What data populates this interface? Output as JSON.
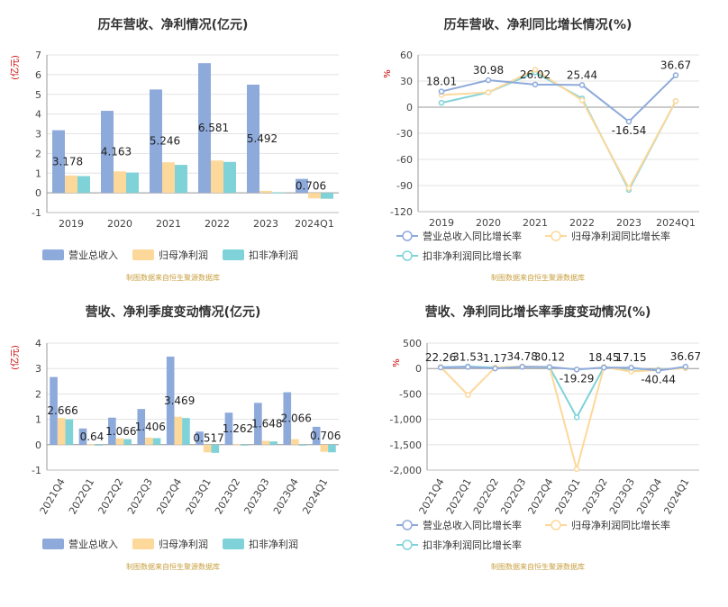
{
  "colors": {
    "revenue": "#8eaadb",
    "net_profit": "#fdd89b",
    "deducted_profit": "#7fd3d8",
    "revenue_line": "#8eaadb",
    "net_line": "#fdd89b",
    "deducted_line": "#7fd3d8",
    "axis_unit": "#cc0000",
    "source": "#c8a040"
  },
  "chart_data": [
    {
      "type": "bar",
      "title": "历年营收、净利情况(亿元)",
      "ylabel": "(亿元)",
      "categories": [
        "2019",
        "2020",
        "2021",
        "2022",
        "2023",
        "2024Q1"
      ],
      "ylim": [
        -1,
        7
      ],
      "yticks": [
        -1,
        0,
        1,
        2,
        3,
        4,
        5,
        6,
        7
      ],
      "series": [
        {
          "name": "营业总收入",
          "values": [
            3.178,
            4.163,
            5.246,
            6.581,
            5.492,
            0.706
          ],
          "labels": [
            "3.178",
            "4.163",
            "5.246",
            "6.581",
            "5.492",
            "0.706"
          ]
        },
        {
          "name": "归母净利润",
          "values": [
            0.88,
            1.09,
            1.55,
            1.64,
            0.1,
            -0.28
          ]
        },
        {
          "name": "扣非净利润",
          "values": [
            0.85,
            1.03,
            1.42,
            1.57,
            0.02,
            -0.3
          ]
        }
      ],
      "legend": "bottom",
      "source": "制图数据来自恒生聚源数据库"
    },
    {
      "type": "line",
      "title": "历年营收、净利同比增长情况(%)",
      "ylabel": "%",
      "categories": [
        "2019",
        "2020",
        "2021",
        "2022",
        "2023",
        "2024Q1"
      ],
      "ylim": [
        -120,
        60
      ],
      "yticks": [
        -120,
        -90,
        -60,
        -30,
        0,
        30,
        60
      ],
      "series": [
        {
          "name": "营业总收入同比增长率",
          "values": [
            18.01,
            30.98,
            26.02,
            25.44,
            -16.54,
            36.67
          ],
          "labels": [
            "18.01",
            "30.98",
            "26.02",
            "25.44",
            "-16.54",
            "36.67"
          ]
        },
        {
          "name": "归母净利润同比增长率",
          "values": [
            14,
            17,
            43,
            8,
            -93,
            7
          ]
        },
        {
          "name": "扣非净利润同比增长率",
          "values": [
            5,
            17,
            40,
            10,
            -95,
            7
          ]
        }
      ],
      "legend": "bottom",
      "source": "制图数据来自恒生聚源数据库"
    },
    {
      "type": "bar",
      "title": "营收、净利季度变动情况(亿元)",
      "ylabel": "(亿元)",
      "categories": [
        "2021Q4",
        "2022Q1",
        "2022Q2",
        "2022Q3",
        "2022Q4",
        "2023Q1",
        "2023Q2",
        "2023Q3",
        "2023Q4",
        "2024Q1"
      ],
      "ylim": [
        -1,
        4
      ],
      "yticks": [
        -1,
        0,
        1,
        2,
        3,
        4
      ],
      "series": [
        {
          "name": "营业总收入",
          "values": [
            2.666,
            0.64,
            1.066,
            1.406,
            3.469,
            0.517,
            1.262,
            1.648,
            2.066,
            0.706
          ],
          "labels": [
            "2.666",
            "0.64",
            "1.066",
            "1.406",
            "3.469",
            "0.517",
            "1.262",
            "1.648",
            "2.066",
            "0.706"
          ]
        },
        {
          "name": "归母净利润",
          "values": [
            1.05,
            0.02,
            0.25,
            0.28,
            1.1,
            -0.3,
            0.02,
            0.15,
            0.22,
            -0.28
          ]
        },
        {
          "name": "扣非净利润",
          "values": [
            1.0,
            0.0,
            0.22,
            0.26,
            1.05,
            -0.32,
            0.0,
            0.13,
            0.0,
            -0.3
          ]
        }
      ],
      "legend": "bottom",
      "source": "制图数据来自恒生聚源数据库"
    },
    {
      "type": "line",
      "title": "营收、净利同比增长率季度变动情况(%)",
      "ylabel": "%",
      "categories": [
        "2021Q4",
        "2022Q1",
        "2022Q2",
        "2022Q3",
        "2022Q4",
        "2023Q1",
        "2023Q2",
        "2023Q3",
        "2023Q4",
        "2024Q1"
      ],
      "ylim": [
        -2000,
        500
      ],
      "yticks": [
        -2000,
        -1500,
        -1000,
        -500,
        0,
        500
      ],
      "ytick_labels": [
        "-2,000",
        "-1,500",
        "-1,000",
        "-500",
        "0",
        "500"
      ],
      "series": [
        {
          "name": "营业总收入同比增长率",
          "values": [
            22.26,
            31.53,
            1.17,
            34.78,
            30.12,
            -19.29,
            18.45,
            17.15,
            -40.44,
            36.67
          ],
          "labels": [
            "22.26",
            "31.53",
            "1.17",
            "34.78",
            "30.12",
            "-19.29",
            "18.45",
            "17.15",
            "-40.44",
            "36.67"
          ]
        },
        {
          "name": "归母净利润同比增长率",
          "values": [
            30,
            -520,
            20,
            40,
            30,
            -1980,
            30,
            -60,
            -30,
            10
          ]
        },
        {
          "name": "扣非净利润同比增长率",
          "values": [
            25,
            40,
            20,
            35,
            25,
            -960,
            30,
            -50,
            -25,
            10
          ]
        }
      ],
      "legend": "bottom",
      "source": "制图数据来自恒生聚源数据库"
    }
  ]
}
